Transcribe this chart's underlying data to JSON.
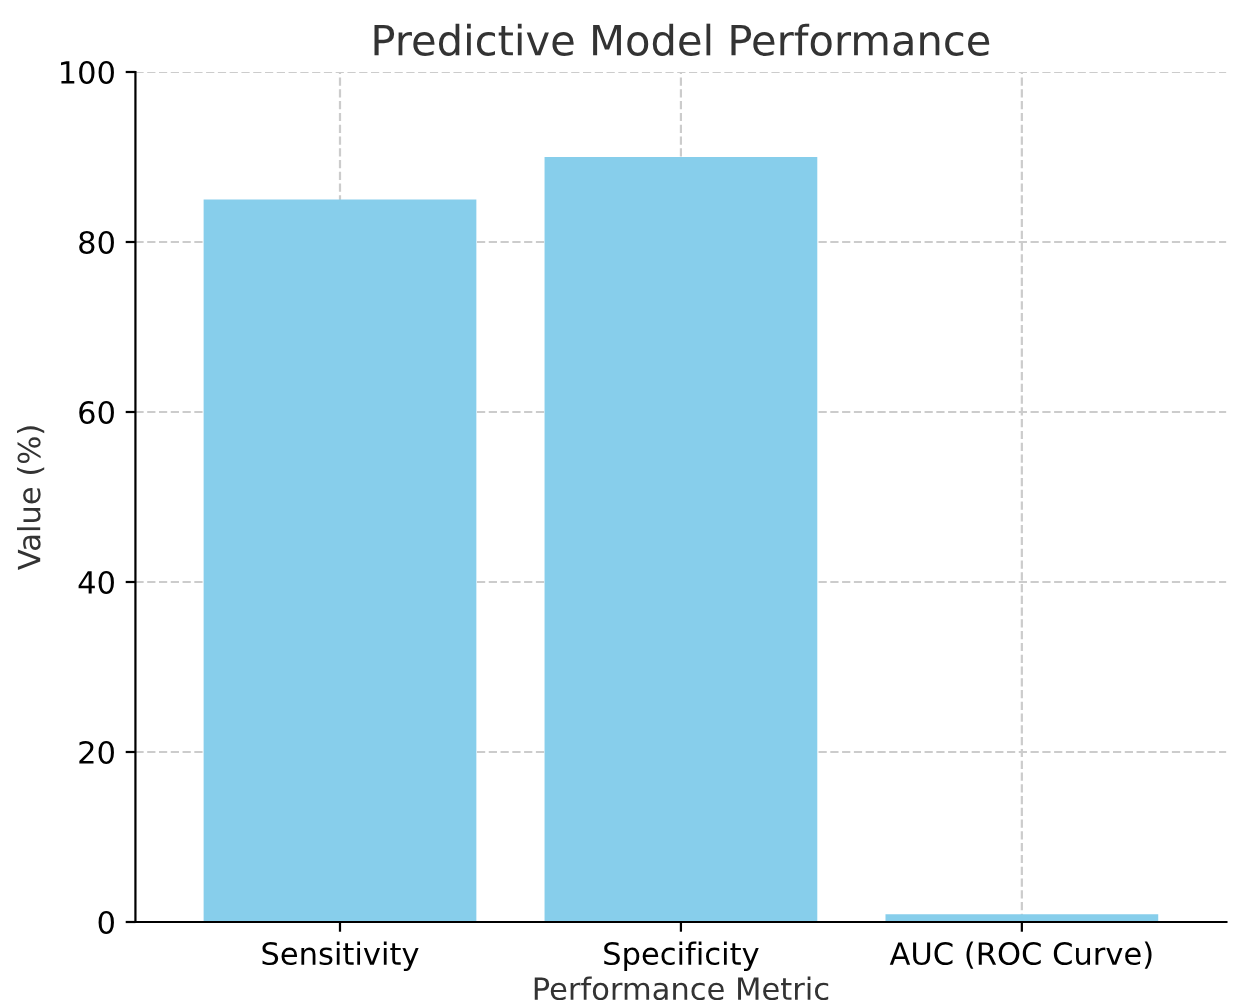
{
  "chart_data": {
    "type": "bar",
    "title": "Predictive Model Performance",
    "xlabel": "Performance Metric",
    "ylabel": "Value (%)",
    "categories": [
      "Sensitivity",
      "Specificity",
      "AUC (ROC Curve)"
    ],
    "values": [
      85,
      90,
      0.9
    ],
    "color": "#87ceeb",
    "ylim": [
      0,
      100
    ],
    "yticks": [
      0,
      20,
      40,
      60,
      80,
      100
    ],
    "grid": true,
    "line_style": "dashed"
  }
}
